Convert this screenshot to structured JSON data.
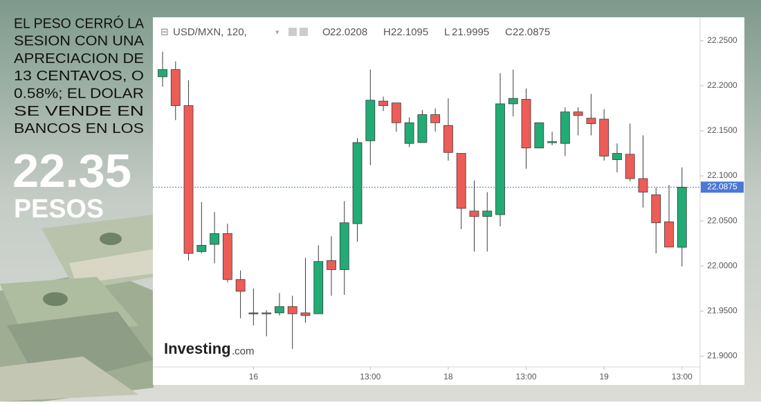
{
  "sidebar": {
    "headline_lines": [
      "EL PESO CERRÓ LA",
      "SESION CON UNA",
      "APRECIACION DE",
      "13 CENTAVOS, O",
      "0.58%; EL DOLAR",
      "SE VENDE EN",
      "BANCOS EN LOS"
    ],
    "price": "22.35",
    "unit": "PESOS"
  },
  "chart_data": {
    "type": "candlestick",
    "header_title": "USD/MXN, 120,",
    "ohlc_header": [
      {
        "label": "O",
        "value": 22.0208
      },
      {
        "label": "H",
        "value": 22.1095
      },
      {
        "label": "L",
        "value": 21.9995
      },
      {
        "label": "C",
        "value": 22.0875
      }
    ],
    "watermark": "Investing",
    "watermark_suffix": ".com",
    "categories": [
      null,
      null,
      null,
      null,
      null,
      null,
      null,
      "16",
      null,
      null,
      null,
      null,
      null,
      null,
      null,
      null,
      "13:00",
      null,
      null,
      null,
      null,
      null,
      "18",
      null,
      null,
      null,
      null,
      null,
      "13:00",
      null,
      null,
      null,
      null,
      null,
      "19",
      null,
      null,
      null,
      null,
      null,
      "13:00"
    ],
    "open": [
      22.21,
      22.218,
      22.178,
      22.016,
      22.024,
      22.036,
      21.985,
      21.947,
      21.948,
      21.948,
      21.955,
      21.948,
      21.947,
      22.006,
      21.996,
      22.047,
      22.139,
      22.183,
      22.181,
      22.136,
      22.137,
      22.168,
      22.156,
      22.125,
      22.061,
      22.055,
      22.057,
      22.18,
      22.185,
      22.131,
      22.138,
      22.136,
      22.171,
      22.164,
      22.163,
      22.118,
      22.124,
      22.097,
      22.079,
      22.049,
      22.0208
    ],
    "high": [
      22.238,
      22.227,
      22.206,
      22.071,
      22.06,
      22.047,
      21.995,
      21.975,
      21.951,
      21.97,
      21.967,
      22.009,
      22.023,
      22.033,
      22.072,
      22.142,
      22.218,
      22.188,
      22.181,
      22.165,
      22.173,
      22.175,
      22.186,
      22.125,
      22.095,
      22.082,
      22.214,
      22.218,
      22.197,
      22.159,
      22.149,
      22.176,
      22.176,
      22.191,
      22.174,
      22.136,
      22.158,
      22.145,
      22.087,
      22.09,
      22.1095
    ],
    "low": [
      22.199,
      22.162,
      22.006,
      22.014,
      22.003,
      21.982,
      21.942,
      21.934,
      21.922,
      21.945,
      21.908,
      21.937,
      21.947,
      21.967,
      21.968,
      22.027,
      22.112,
      22.172,
      22.149,
      22.132,
      22.137,
      22.149,
      22.117,
      22.041,
      22.016,
      22.016,
      22.044,
      22.166,
      22.108,
      22.131,
      22.134,
      22.122,
      22.145,
      22.145,
      22.117,
      22.104,
      22.094,
      22.065,
      22.014,
      22.021,
      21.9995
    ],
    "close": [
      22.218,
      22.178,
      22.014,
      22.023,
      22.036,
      21.985,
      21.972,
      21.948,
      21.947,
      21.955,
      21.947,
      21.945,
      22.005,
      21.996,
      22.048,
      22.137,
      22.184,
      22.178,
      22.159,
      22.159,
      22.168,
      22.159,
      22.126,
      22.064,
      22.055,
      22.061,
      22.18,
      22.186,
      22.131,
      22.159,
      22.138,
      22.171,
      22.167,
      22.158,
      22.122,
      22.125,
      22.097,
      22.082,
      22.048,
      22.021,
      22.0875
    ],
    "up_color": "#22ab74",
    "down_color": "#ee5c57",
    "wick_color": "#3a3a3a",
    "last_price": 22.0875,
    "last_price_color": "#4a78d4",
    "ylim": [
      21.888,
      22.276
    ],
    "yticks": [
      {
        "value": 21.9,
        "label": "21.9000"
      },
      {
        "value": 21.95,
        "label": "21.9500"
      },
      {
        "value": 22.0,
        "label": "22.0000"
      },
      {
        "value": 22.05,
        "label": "22.0500"
      },
      {
        "value": 22.1,
        "label": "22.1000"
      },
      {
        "value": 22.15,
        "label": "22.1500"
      },
      {
        "value": 22.2,
        "label": "22.2000"
      },
      {
        "value": 22.25,
        "label": "22.2500"
      }
    ]
  }
}
